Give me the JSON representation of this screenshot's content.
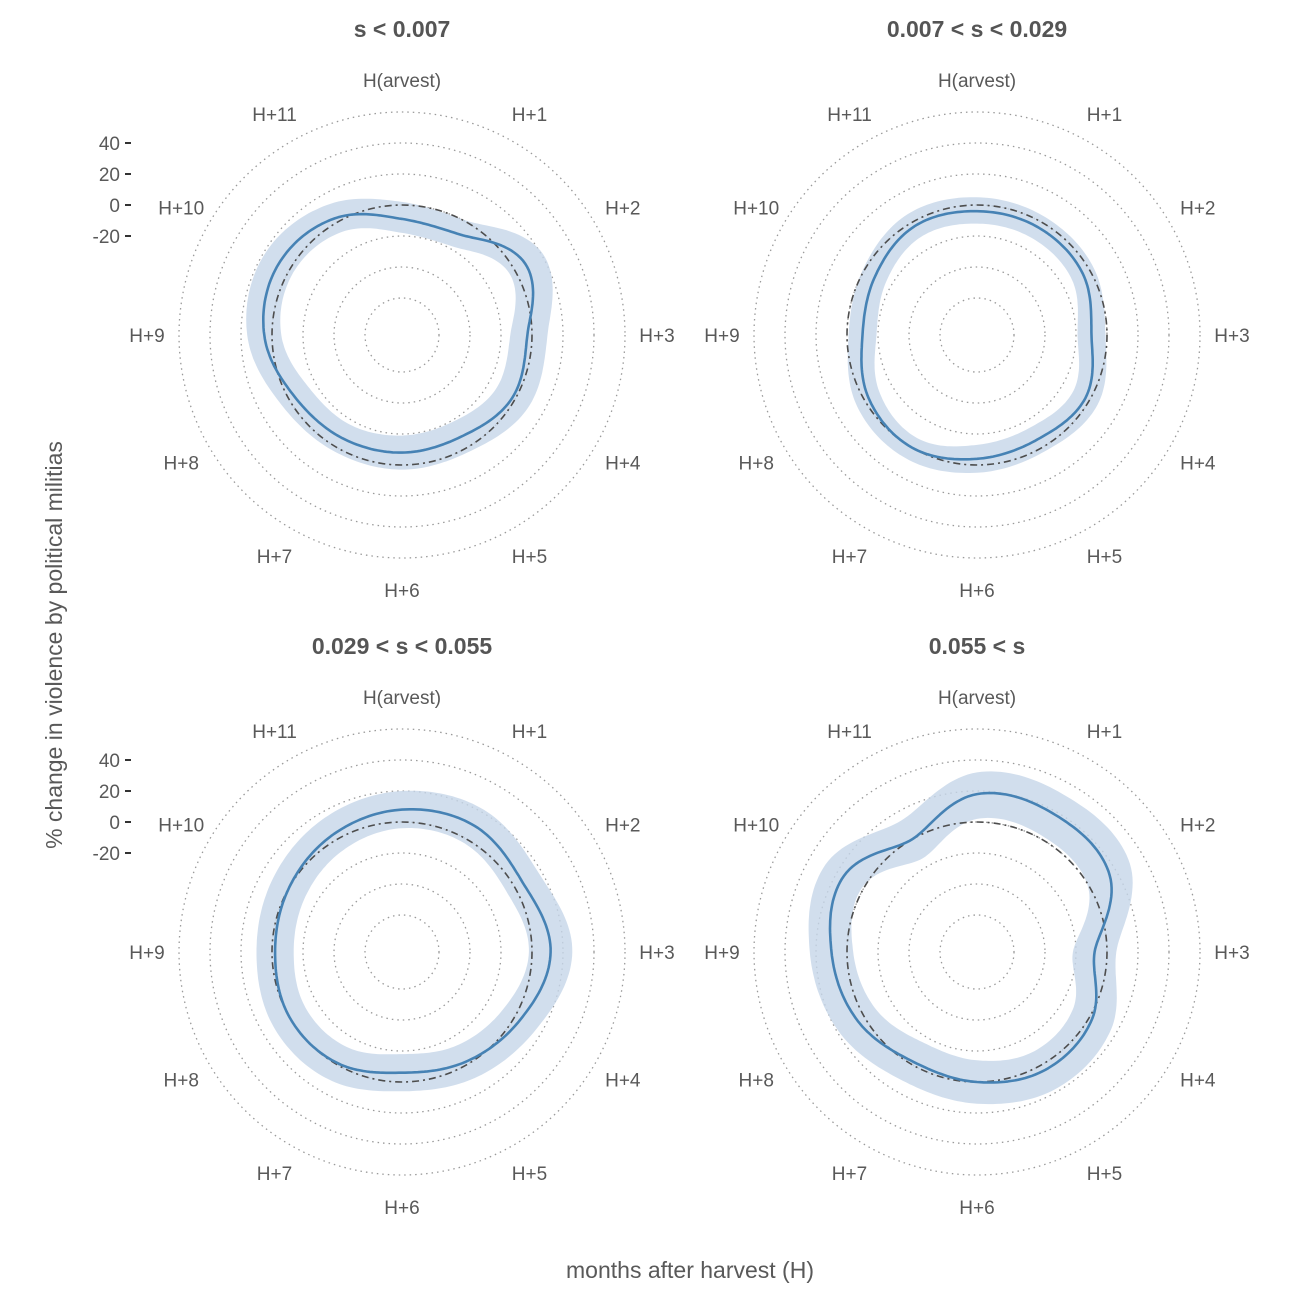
{
  "figure": {
    "ylabel": "% change in violence by political militias",
    "xlabel": "months after harvest (H)"
  },
  "colors": {
    "line": "#4682b4",
    "band": "#c5d6e8",
    "baseline": "#4d4d4d",
    "grid": "#9a9a9a",
    "text": "#595959",
    "title": "#555555"
  },
  "months": [
    "H(arvest)",
    "H+1",
    "H+2",
    "H+3",
    "H+4",
    "H+5",
    "H+6",
    "H+7",
    "H+8",
    "H+9",
    "H+10",
    "H+11"
  ],
  "chart_data": [
    {
      "type": "line",
      "coord": "polar",
      "title": "s < 0.007",
      "rticks": [
        -20,
        0,
        20,
        40
      ],
      "rlim": [
        -60,
        60
      ],
      "series": [
        {
          "values": [
            -9,
            -9,
            8,
            -3,
            -2,
            -8,
            -8,
            -7,
            -4,
            5,
            8,
            3
          ]
        }
      ],
      "band": {
        "lower": [
          -18,
          -18,
          -4,
          -14,
          -14,
          -19,
          -19,
          -17,
          -15,
          -6,
          -3,
          -7
        ],
        "upper": [
          2,
          1,
          21,
          10,
          10,
          3,
          3,
          3,
          6,
          16,
          19,
          13
        ]
      }
    },
    {
      "type": "line",
      "coord": "polar",
      "title": "0.007 < s < 0.029",
      "rticks": [
        -20,
        0,
        20,
        40
      ],
      "rlim": [
        -60,
        60
      ],
      "series": [
        {
          "values": [
            -4,
            -4,
            -5,
            -10,
            -3,
            -6,
            -4,
            0,
            -3,
            -10,
            -8,
            -3
          ]
        }
      ],
      "band": {
        "lower": [
          -12,
          -12,
          -13,
          -19,
          -12,
          -15,
          -13,
          -7,
          -11,
          -19,
          -16,
          -11
        ],
        "upper": [
          5,
          4,
          3,
          -1,
          6,
          3,
          5,
          8,
          6,
          -1,
          1,
          6
        ]
      }
    },
    {
      "type": "line",
      "coord": "polar",
      "title": "0.029 < s < 0.055",
      "rticks": [
        -20,
        0,
        20,
        40
      ],
      "rlim": [
        -60,
        60
      ],
      "series": [
        {
          "values": [
            8,
            10,
            6,
            12,
            4,
            -2,
            -6,
            -1,
            0,
            -2,
            0,
            4
          ]
        }
      ],
      "band": {
        "lower": [
          -4,
          -3,
          -6,
          -2,
          -9,
          -14,
          -18,
          -13,
          -12,
          -14,
          -12,
          -8
        ],
        "upper": [
          20,
          22,
          18,
          26,
          16,
          10,
          6,
          11,
          12,
          10,
          12,
          16
        ]
      }
    },
    {
      "type": "line",
      "coord": "polar",
      "title": "0.055 < s",
      "rticks": [
        -20,
        0,
        20,
        40
      ],
      "rlim": [
        -60,
        60
      ],
      "series": [
        {
          "values": [
            18,
            18,
            15,
            -8,
            2,
            4,
            0,
            -2,
            5,
            10,
            15,
            0
          ]
        }
      ],
      "band": {
        "lower": [
          2,
          2,
          -1,
          -22,
          -12,
          -10,
          -14,
          -16,
          -9,
          -4,
          1,
          -14
        ],
        "upper": [
          32,
          32,
          30,
          6,
          16,
          18,
          14,
          12,
          19,
          24,
          29,
          14
        ]
      }
    }
  ]
}
